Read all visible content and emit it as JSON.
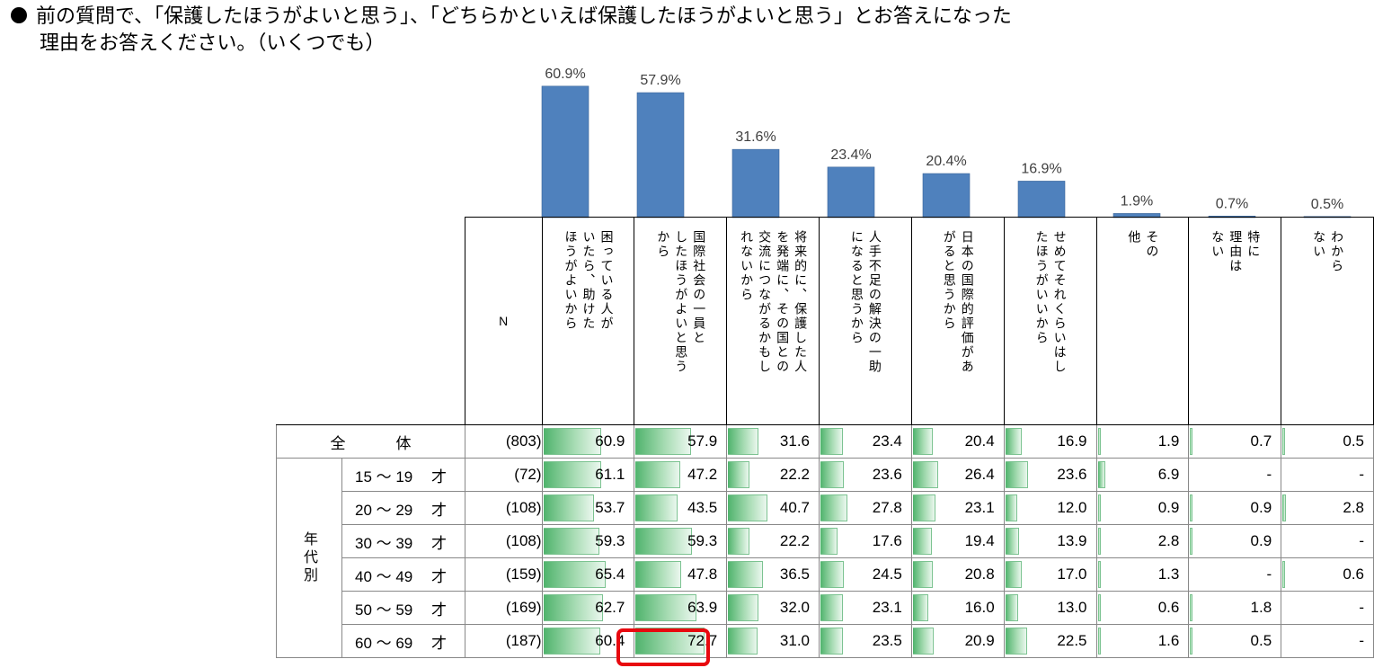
{
  "question": {
    "line1": "前の質問で、「保護したほうがよいと思う」、「どちらかといえば保護したほうがよいと思う」とお答えになった",
    "line2": "理由をお答えください。（いくつでも）"
  },
  "chart_data": {
    "type": "bar",
    "categories": [
      "困っている人がいたら、助けたほうがよいから",
      "国際社会の一員としてしたほうがよいと思うから",
      "将来的に、保護した人を発端に、その国との交流につながるかもしれないから",
      "人手不足の解決の一助になると思うから",
      "日本の国際的評価があがると思うから",
      "せめてそれくらいはしたほうがいいから",
      "その他",
      "特に理由はない",
      "わからない"
    ],
    "column_headers": [
      "困っている人が\nいたら、助けた\nほうがよいから",
      "国際社会の一員と\nしたほうがよいと思う\nから",
      "将来的に、保護した人\nを発端に、その国との\n交流につながるかもし\nれないから",
      "人手不足の解決の一助\nになると思うから",
      "日本の国際的評価があ\nがると思うから",
      "せめてそれくらいはし\nたほうがいいから",
      "その\n他",
      "特に\n理由は\nない",
      "わから\nない"
    ],
    "overall_labels": [
      "60.9%",
      "57.9%",
      "31.6%",
      "23.4%",
      "20.4%",
      "16.9%",
      "1.9%",
      "0.7%",
      "0.5%"
    ],
    "overall_values": [
      60.9,
      57.9,
      31.6,
      23.4,
      20.4,
      16.9,
      1.9,
      0.7,
      0.5
    ],
    "n_header": "N",
    "group_label": "年代別",
    "rows": [
      {
        "label_a": "全",
        "label_b": "体",
        "n": "(803)",
        "values": [
          "60.9",
          "57.9",
          "31.6",
          "23.4",
          "20.4",
          "16.9",
          "1.9",
          "0.7",
          "0.5"
        ]
      },
      {
        "label_a": "15 ～ 19",
        "label_b": "才",
        "n": "(72)",
        "values": [
          "61.1",
          "47.2",
          "22.2",
          "23.6",
          "26.4",
          "23.6",
          "6.9",
          "-",
          "-"
        ]
      },
      {
        "label_a": "20 ～ 29",
        "label_b": "才",
        "n": "(108)",
        "values": [
          "53.7",
          "43.5",
          "40.7",
          "27.8",
          "23.1",
          "12.0",
          "0.9",
          "0.9",
          "2.8"
        ]
      },
      {
        "label_a": "30 ～ 39",
        "label_b": "才",
        "n": "(108)",
        "values": [
          "59.3",
          "59.3",
          "22.2",
          "17.6",
          "19.4",
          "13.9",
          "2.8",
          "0.9",
          "-"
        ]
      },
      {
        "label_a": "40 ～ 49",
        "label_b": "才",
        "n": "(159)",
        "values": [
          "65.4",
          "47.8",
          "36.5",
          "24.5",
          "20.8",
          "17.0",
          "1.3",
          "-",
          "0.6"
        ]
      },
      {
        "label_a": "50 ～ 59",
        "label_b": "才",
        "n": "(169)",
        "values": [
          "62.7",
          "63.9",
          "32.0",
          "23.1",
          "16.0",
          "13.0",
          "0.6",
          "1.8",
          "-"
        ]
      },
      {
        "label_a": "60 ～ 69",
        "label_b": "才",
        "n": "(187)",
        "values": [
          "60.4",
          "72.7",
          "31.0",
          "23.5",
          "20.9",
          "22.5",
          "1.6",
          "0.5",
          "-"
        ]
      }
    ],
    "highlighted_cell": {
      "row": "60 ～ 69 才",
      "column": "国際社会の一員としてしたほうがよいと思うから",
      "value": "72.7"
    },
    "colors": {
      "top_bar": "#4f81bd",
      "cell_bar": "#5cb872",
      "highlight": "#e8090f"
    },
    "ylim": [
      0,
      100
    ]
  }
}
